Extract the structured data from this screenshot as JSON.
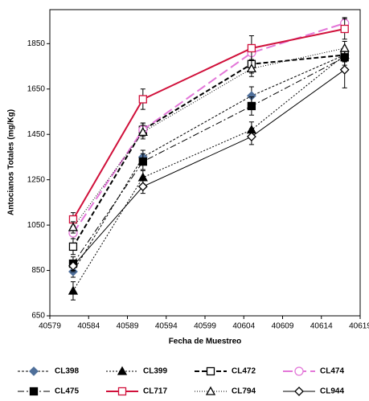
{
  "chart_data": {
    "type": "line",
    "x_label": "Fecha de Muestreo",
    "y_label": "Antocianos Totales (mg/Kg)",
    "x": [
      40582,
      40591,
      40605,
      40617
    ],
    "xlim": [
      40579,
      40619
    ],
    "xticks": [
      40579,
      40584,
      40589,
      40594,
      40599,
      40604,
      40609,
      40614,
      40619
    ],
    "ylim": [
      650,
      2000
    ],
    "yticks": [
      650,
      850,
      1050,
      1250,
      1450,
      1650,
      1850
    ],
    "series": [
      {
        "name": "CL398",
        "color": "#000000",
        "marker_color": "#4f6f9a",
        "marker": "diamond",
        "filled": true,
        "dash": "3,2",
        "width": 1,
        "values": [
          845,
          1350,
          1620,
          1800
        ],
        "errors": [
          25,
          30,
          40,
          30
        ]
      },
      {
        "name": "CL399",
        "color": "#000000",
        "marker_color": "#000000",
        "marker": "triangle",
        "filled": true,
        "dash": "2,2",
        "width": 1,
        "values": [
          760,
          1260,
          1470,
          1800
        ],
        "errors": [
          40,
          30,
          35,
          30
        ]
      },
      {
        "name": "CL472",
        "color": "#000000",
        "marker_color": "#000000",
        "marker": "square",
        "filled": false,
        "dash": "6,3",
        "width": 2,
        "values": [
          955,
          1470,
          1760,
          1800
        ],
        "errors": [
          35,
          30,
          40,
          30
        ]
      },
      {
        "name": "CL474",
        "color": "#e377d8",
        "marker_color": "#e377d8",
        "marker": "circle",
        "filled": false,
        "dash": "12,5",
        "width": 2,
        "values": [
          1015,
          1470,
          1810,
          1940
        ],
        "errors": [
          25,
          30,
          30,
          25
        ]
      },
      {
        "name": "CL475",
        "color": "#000000",
        "marker_color": "#000000",
        "marker": "square",
        "filled": true,
        "dash": "8,3,2,3",
        "width": 1,
        "values": [
          880,
          1330,
          1575,
          1790
        ],
        "errors": [
          30,
          35,
          40,
          35
        ]
      },
      {
        "name": "CL717",
        "color": "#d0103a",
        "marker_color": "#d0103a",
        "marker": "square",
        "filled": false,
        "dash": "",
        "width": 2,
        "values": [
          1075,
          1605,
          1830,
          1915
        ],
        "errors": [
          30,
          45,
          55,
          45
        ]
      },
      {
        "name": "CL794",
        "color": "#000000",
        "marker_color": "#000000",
        "marker": "triangle",
        "filled": false,
        "dash": "1,2",
        "width": 1,
        "values": [
          1040,
          1460,
          1740,
          1830
        ],
        "errors": [
          25,
          30,
          35,
          30
        ]
      },
      {
        "name": "CL944",
        "color": "#000000",
        "marker_color": "#000000",
        "marker": "diamond",
        "filled": false,
        "dash": "",
        "width": 1,
        "values": [
          870,
          1220,
          1440,
          1735
        ],
        "errors": [
          25,
          30,
          35,
          80
        ]
      }
    ]
  }
}
